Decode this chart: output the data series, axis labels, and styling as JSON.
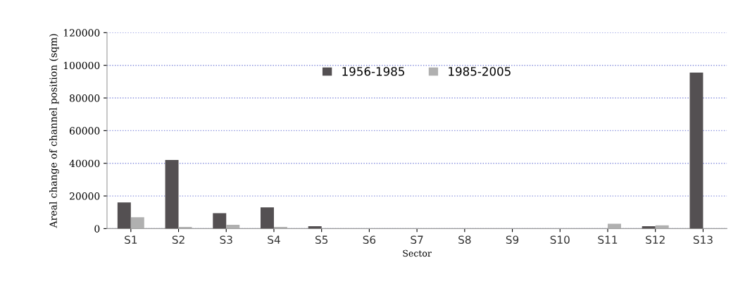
{
  "chart_data": {
    "type": "bar",
    "xlabel": "Sector",
    "ylabel": "Areal change of channel position (sqm)",
    "categories": [
      "S1",
      "S2",
      "S3",
      "S4",
      "S5",
      "S6",
      "S7",
      "S8",
      "S9",
      "S10",
      "S11",
      "S12",
      "S13"
    ],
    "series": [
      {
        "name": "1956-1985",
        "color": "#545052",
        "values": [
          16000,
          42000,
          9500,
          13000,
          1500,
          0,
          0,
          0,
          0,
          0,
          0,
          1500,
          95500
        ]
      },
      {
        "name": "1985-2005",
        "color": "#b0b0b0",
        "values": [
          7000,
          1000,
          2300,
          1000,
          0,
          0,
          0,
          0,
          0,
          0,
          3000,
          2000,
          0
        ]
      }
    ],
    "ylim": [
      0,
      120000
    ],
    "yticks": [
      0,
      20000,
      40000,
      60000,
      80000,
      100000,
      120000
    ],
    "grid": "y",
    "legend": "top"
  }
}
